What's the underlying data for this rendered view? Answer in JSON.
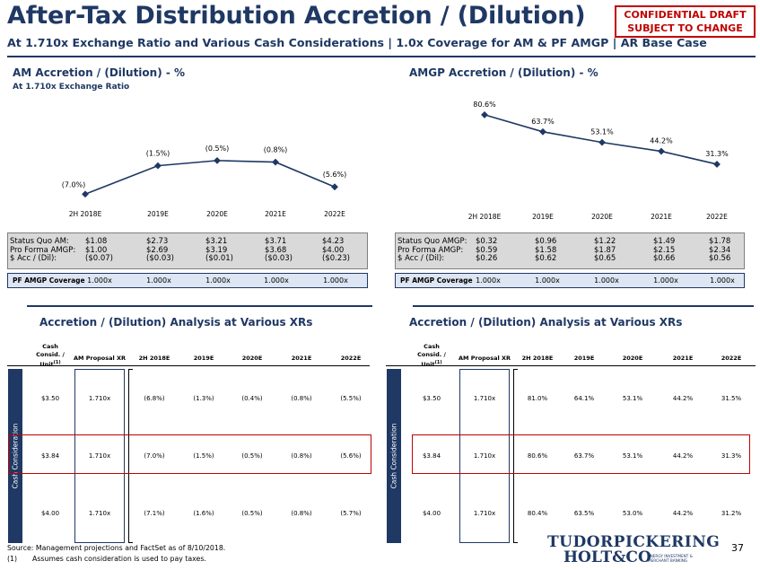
{
  "header": {
    "title": "After-Tax Distribution Accretion / (Dilution)",
    "subtitle": "At 1.710x Exchange Ratio and Various Cash Considerations | 1.0x Coverage for AM & PF AMGP | AR Base Case",
    "confidential_line1": "CONFIDENTIAL DRAFT",
    "confidential_line2": "SUBJECT TO CHANGE"
  },
  "colors": {
    "navy": "#1f3864",
    "red": "#c00000",
    "grey": "#d9d9d9",
    "light_blue": "#dde6f2"
  },
  "am": {
    "title": "AM Accretion / (Dilution) - %",
    "subtitle": "At 1.710x Exchange Ratio",
    "stats_labels": [
      "Status Quo AM:",
      "Pro Forma AMGP:",
      "$ Acc / (Dil):"
    ],
    "stats": [
      [
        "$1.08",
        "$1.00",
        "($0.07)"
      ],
      [
        "$2.73",
        "$2.69",
        "($0.03)"
      ],
      [
        "$3.21",
        "$3.19",
        "($0.01)"
      ],
      [
        "$3.71",
        "$3.68",
        "($0.03)"
      ],
      [
        "$4.23",
        "$4.00",
        "($0.23)"
      ]
    ],
    "coverage_label": "PF AMGP Coverage",
    "coverage": [
      "1.000x",
      "1.000x",
      "1.000x",
      "1.000x",
      "1.000x"
    ]
  },
  "amgp": {
    "title": "AMGP Accretion / (Dilution) - %",
    "stats_labels": [
      "Status Quo AMGP:",
      "Pro Forma AMGP:",
      "$ Acc / (Dil):"
    ],
    "stats": [
      [
        "$0.32",
        "$0.59",
        "$0.26"
      ],
      [
        "$0.96",
        "$1.58",
        "$0.62"
      ],
      [
        "$1.22",
        "$1.87",
        "$0.65"
      ],
      [
        "$1.49",
        "$2.15",
        "$0.66"
      ],
      [
        "$1.78",
        "$2.34",
        "$0.56"
      ]
    ],
    "coverage_label": "PF AMGP Coverage",
    "coverage": [
      "1.000x",
      "1.000x",
      "1.000x",
      "1.000x",
      "1.000x"
    ]
  },
  "chart_data": [
    {
      "type": "line",
      "categories": [
        "2H 2018E",
        "2019E",
        "2020E",
        "2021E",
        "2022E"
      ],
      "values": [
        -7.0,
        -1.5,
        -0.5,
        -0.8,
        -5.6
      ],
      "labels": [
        "(7.0%)",
        "(1.5%)",
        "(0.5%)",
        "(0.8%)",
        "(5.6%)"
      ],
      "ylim": [
        -8,
        0
      ]
    },
    {
      "type": "line",
      "categories": [
        "2H 2018E",
        "2019E",
        "2020E",
        "2021E",
        "2022E"
      ],
      "values": [
        80.6,
        63.7,
        53.1,
        44.2,
        31.3
      ],
      "labels": [
        "80.6%",
        "63.7%",
        "53.1%",
        "44.2%",
        "31.3%"
      ],
      "ylim": [
        25,
        85
      ]
    }
  ],
  "analysis": {
    "left_title": "Accretion / (Dilution) Analysis at Various XRs",
    "right_title": "Accretion / (Dilution) Analysis at Various XRs",
    "col_cash_line1": "Cash",
    "col_cash_line2": "Consid. /",
    "col_cash_line3": "Unit",
    "col_cash_footnote": "(1)",
    "col_xr": "AM Proposal XR",
    "years": [
      "2H 2018E",
      "2019E",
      "2020E",
      "2021E",
      "2022E"
    ],
    "sidebar_label": "Cash Consideration",
    "left_rows": [
      {
        "cash": "$3.50",
        "xr": "1.710x",
        "vals": [
          "(6.8%)",
          "(1.3%)",
          "(0.4%)",
          "(0.8%)",
          "(5.5%)"
        ]
      },
      {
        "cash": "$3.84",
        "xr": "1.710x",
        "vals": [
          "(7.0%)",
          "(1.5%)",
          "(0.5%)",
          "(0.8%)",
          "(5.6%)"
        ]
      },
      {
        "cash": "$4.00",
        "xr": "1.710x",
        "vals": [
          "(7.1%)",
          "(1.6%)",
          "(0.5%)",
          "(0.8%)",
          "(5.7%)"
        ]
      }
    ],
    "right_rows": [
      {
        "cash": "$3.50",
        "xr": "1.710x",
        "vals": [
          "81.0%",
          "64.1%",
          "53.1%",
          "44.2%",
          "31.5%"
        ]
      },
      {
        "cash": "$3.84",
        "xr": "1.710x",
        "vals": [
          "80.6%",
          "63.7%",
          "53.1%",
          "44.2%",
          "31.3%"
        ]
      },
      {
        "cash": "$4.00",
        "xr": "1.710x",
        "vals": [
          "80.4%",
          "63.5%",
          "53.0%",
          "44.2%",
          "31.2%"
        ]
      }
    ]
  },
  "footer": {
    "source": "Source: Management projections and FactSet as of 8/10/2018.",
    "note_num": "(1)",
    "note": "Assumes cash consideration is used to pay taxes.",
    "logo_line1": "TUDORPICKERING",
    "logo_line2": "HOLT&CO",
    "logo_tag1": "ENERGY INVESTMENT &",
    "logo_tag2": "MERCHANT BANKING",
    "page_number": "37"
  }
}
